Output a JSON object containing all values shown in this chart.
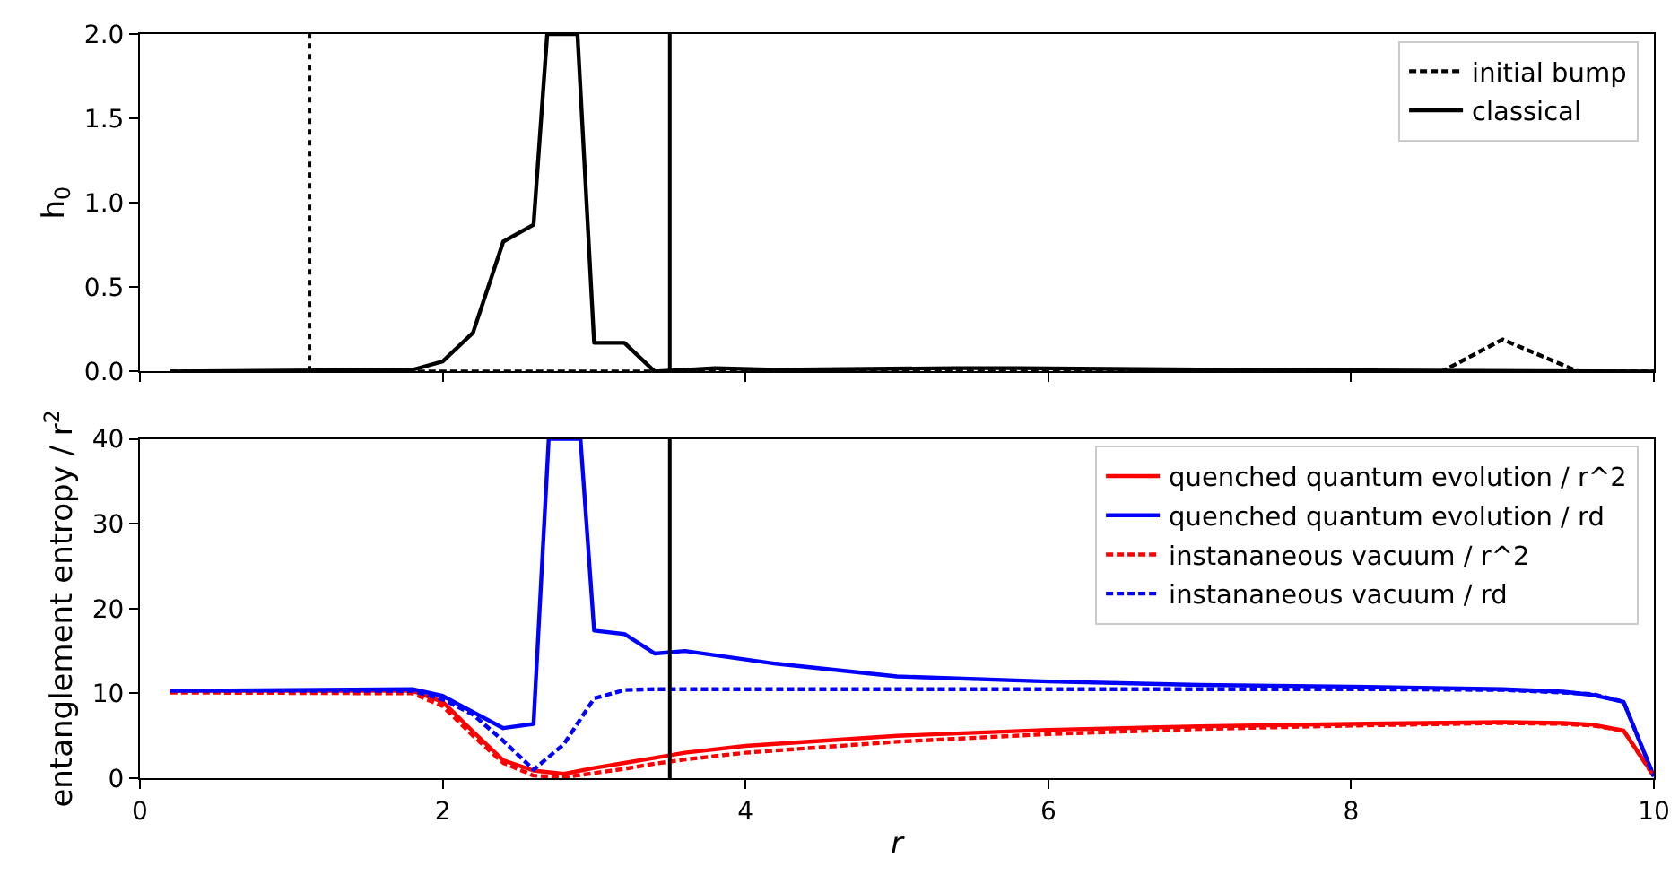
{
  "chart_data": [
    {
      "type": "line",
      "ylabel": "h$_{0}$",
      "xlim": [
        0,
        10
      ],
      "xticks": [
        0,
        2,
        4,
        6,
        8,
        10
      ],
      "ylim": [
        0,
        2
      ],
      "yticks": [
        {
          "value": 0,
          "label": "0.0"
        },
        {
          "value": 0.5,
          "label": "0.5"
        },
        {
          "value": 1,
          "label": "1.0"
        },
        {
          "value": 1.5,
          "label": "1.5"
        },
        {
          "value": 2,
          "label": "2.0"
        }
      ],
      "tick_labels": "y",
      "grid": false,
      "legend": "top right",
      "series": [
        {
          "name": "initial bump",
          "color": "#000000",
          "line_style": "dashed",
          "x": [
            0.2,
            8.6,
            9.0,
            9.5,
            10
          ],
          "values": [
            0,
            0,
            0.19,
            0,
            0
          ]
        },
        {
          "name": "classical",
          "color": "#000000",
          "line_style": "solid",
          "x": [
            0.2,
            1.8,
            2.0,
            2.2,
            2.4,
            2.6,
            2.69,
            2.89,
            3.0,
            3.2,
            3.4,
            3.8,
            4.2,
            5.4,
            5.8,
            7.2,
            10
          ],
          "values": [
            0,
            0.01,
            0.06,
            0.23,
            0.77,
            0.87,
            2,
            2,
            0.17,
            0.17,
            0,
            0.02,
            0.01,
            0.02,
            0.02,
            0.01,
            0
          ]
        }
      ],
      "ref_lines": [
        {
          "axis": "x",
          "value": 1.12,
          "color": "#000000",
          "line_style": "dotted"
        },
        {
          "axis": "x",
          "value": 3.5,
          "color": "#000000",
          "line_style": "solid"
        }
      ]
    },
    {
      "type": "line",
      "xlabel": "r",
      "ylabel": "entanglement entropy / r$^{2}$",
      "xlim": [
        0,
        10
      ],
      "xticks": [
        0,
        2,
        4,
        6,
        8,
        10
      ],
      "ylim": [
        0,
        40
      ],
      "yticks": [
        0,
        10,
        20,
        30,
        40
      ],
      "grid": false,
      "legend": "top right",
      "series": [
        {
          "name": "quenched quantum evolution / r^2",
          "color": "#ff0000",
          "line_style": "solid",
          "x": [
            0.2,
            1.8,
            2.0,
            2.2,
            2.4,
            2.6,
            2.8,
            3.0,
            3.2,
            3.4,
            3.6,
            4.0,
            5,
            6,
            7,
            8,
            9,
            9.4,
            9.6,
            9.8,
            10
          ],
          "values": [
            10.3,
            10.3,
            9.0,
            5.5,
            2.1,
            0.9,
            0.5,
            1.2,
            1.8,
            2.4,
            3.0,
            3.8,
            5.0,
            5.7,
            6.1,
            6.4,
            6.6,
            6.5,
            6.3,
            5.6,
            0.3
          ]
        },
        {
          "name": "quenched quantum evolution / rd",
          "color": "#0000ff",
          "line_style": "solid",
          "x": [
            0.2,
            1.8,
            2.0,
            2.2,
            2.4,
            2.6,
            2.7,
            2.91,
            3.0,
            3.2,
            3.4,
            3.6,
            4.2,
            5,
            6,
            7,
            8,
            9,
            9.4,
            9.6,
            9.8,
            10
          ],
          "values": [
            10.3,
            10.5,
            9.7,
            7.8,
            5.9,
            6.4,
            40,
            40,
            17.4,
            17.0,
            14.7,
            15.0,
            13.5,
            12.0,
            11.4,
            11.0,
            10.8,
            10.5,
            10.2,
            9.8,
            9.0,
            0.2
          ]
        },
        {
          "name": "instananeous vacuum / r^2",
          "color": "#ff0000",
          "line_style": "dashed",
          "x": [
            0.2,
            1.8,
            2.0,
            2.2,
            2.4,
            2.6,
            2.8,
            3.0,
            3.2,
            3.4,
            3.6,
            4.0,
            5,
            6,
            7,
            8,
            9,
            9.4,
            9.6,
            9.8,
            10
          ],
          "values": [
            10.1,
            10.0,
            8.5,
            5.0,
            1.8,
            0.3,
            0.1,
            0.6,
            1.1,
            1.7,
            2.2,
            3.0,
            4.3,
            5.2,
            5.8,
            6.2,
            6.5,
            6.4,
            6.2,
            5.6,
            0.2
          ]
        },
        {
          "name": "instananeous vacuum / rd",
          "color": "#0000ff",
          "line_style": "dashed",
          "x": [
            0.2,
            1.8,
            2.0,
            2.2,
            2.4,
            2.6,
            2.8,
            3.0,
            3.2,
            3.4,
            4,
            5,
            6,
            7,
            8,
            9,
            9.4,
            9.6,
            9.8,
            10
          ],
          "values": [
            10.3,
            10.3,
            9.3,
            7.5,
            4.4,
            1.0,
            4.0,
            9.4,
            10.4,
            10.5,
            10.5,
            10.5,
            10.5,
            10.5,
            10.5,
            10.4,
            10.1,
            9.9,
            9.0,
            0.2
          ]
        }
      ],
      "ref_lines": [
        {
          "axis": "x",
          "value": 3.5,
          "color": "#000000",
          "line_style": "solid"
        }
      ]
    }
  ]
}
